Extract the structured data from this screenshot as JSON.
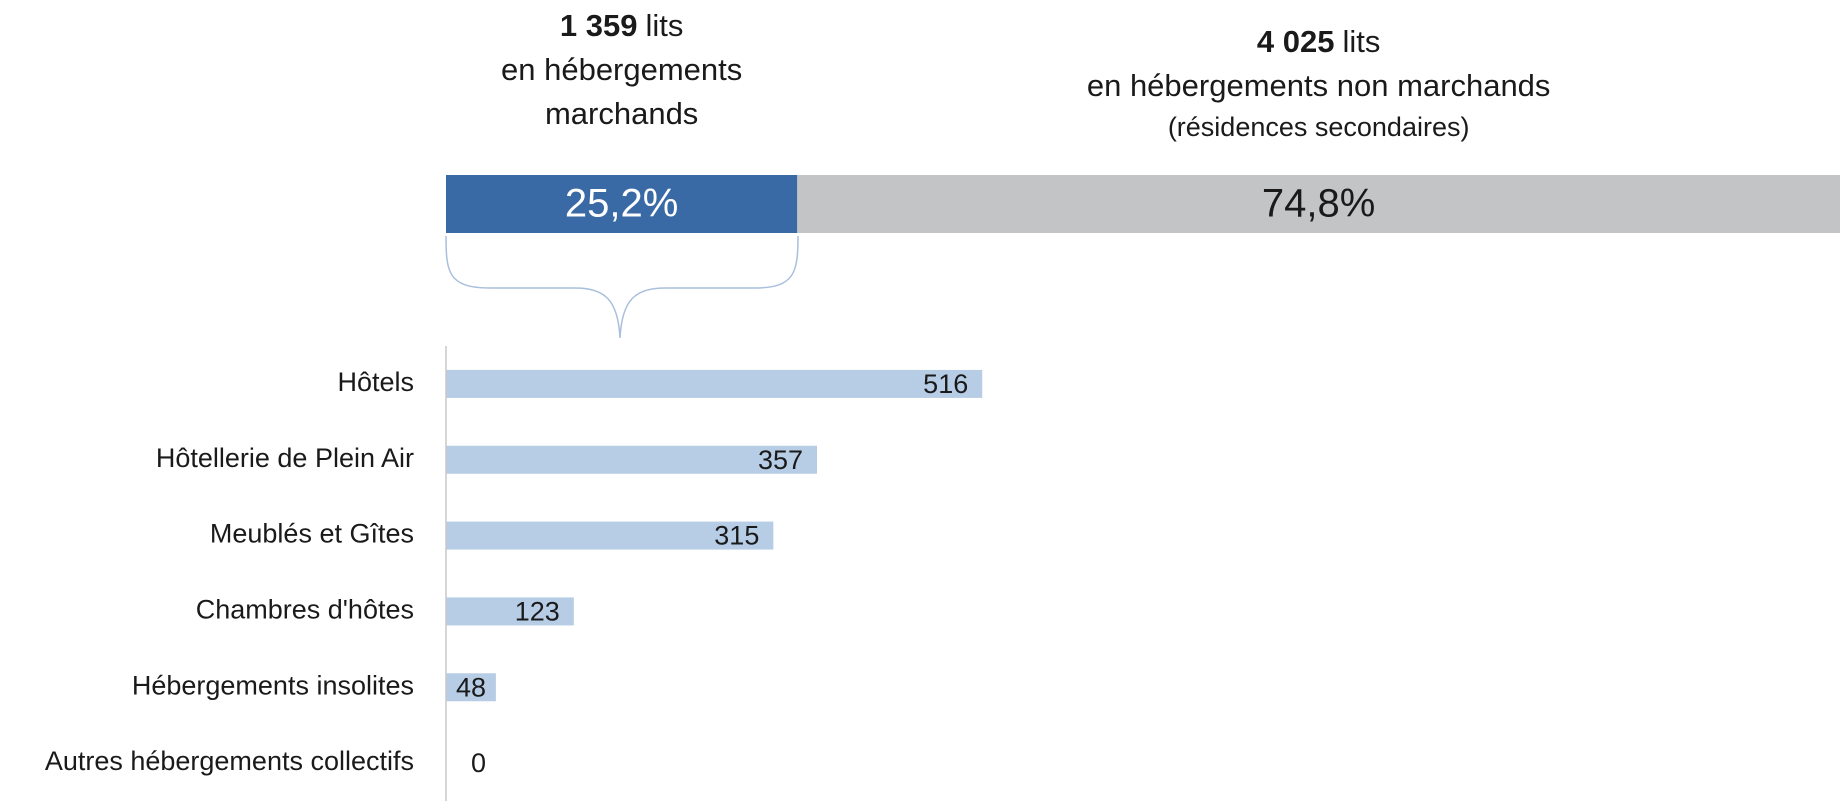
{
  "chart_data": [
    {
      "type": "stacked-bar",
      "xlim": [
        0,
        100
      ],
      "series": [
        {
          "name": "en hébergements marchands",
          "count": {
            "value": 1359,
            "label": "1 359"
          },
          "unit": "lits",
          "values": [
            25.2
          ],
          "value_labels": [
            "25,2%"
          ],
          "color": "#3a6aa5"
        },
        {
          "name": "en hébergements non marchands",
          "detail": "(résidences secondaires)",
          "count": {
            "value": 4025,
            "label": "4 025"
          },
          "unit": "lits",
          "values": [
            74.8
          ],
          "value_labels": [
            "74,8%"
          ],
          "color": "#c3c4c6"
        }
      ]
    },
    {
      "type": "bar",
      "orientation": "horizontal",
      "categories": [
        "Hôtels",
        "Hôtellerie de Plein Air",
        "Meublés et Gîtes",
        "Chambres d'hôtes",
        "Hébergements insolites",
        "Autres hébergements collectifs"
      ],
      "values": [
        516,
        357,
        315,
        123,
        48,
        0
      ],
      "color": "#b7cde6",
      "xlim": [
        0,
        1300
      ]
    }
  ]
}
